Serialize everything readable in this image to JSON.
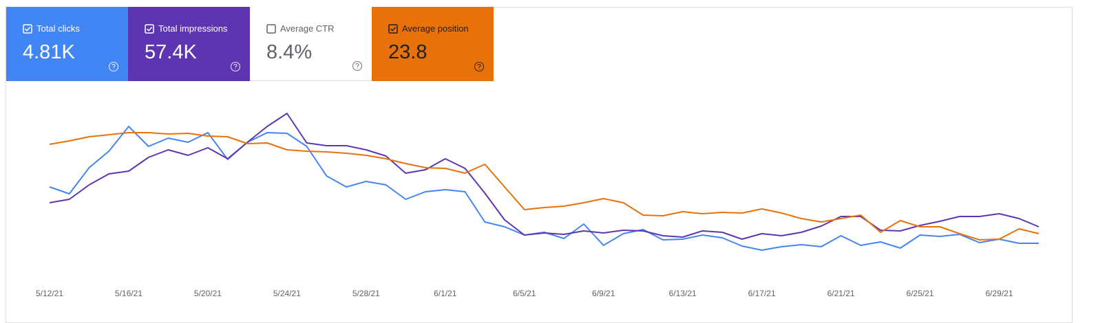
{
  "cards": [
    {
      "label": "Total clicks",
      "value": "4.81K",
      "checked": true,
      "color": "#4285f4"
    },
    {
      "label": "Total impressions",
      "value": "57.4K",
      "checked": true,
      "color": "#5e35b1"
    },
    {
      "label": "Average CTR",
      "value": "8.4%",
      "checked": false,
      "color": "#ffffff"
    },
    {
      "label": "Average position",
      "value": "23.8",
      "checked": true,
      "color": "#e8710a"
    }
  ],
  "chart_data": {
    "type": "line",
    "categories": [
      "5/12/21",
      null,
      null,
      null,
      "5/16/21",
      null,
      null,
      null,
      "5/20/21",
      null,
      null,
      null,
      "5/24/21",
      null,
      null,
      null,
      "5/28/21",
      null,
      null,
      null,
      "6/1/21",
      null,
      null,
      null,
      "6/5/21",
      null,
      null,
      null,
      "6/9/21",
      null,
      null,
      null,
      "6/13/21",
      null,
      null,
      null,
      "6/17/21",
      null,
      null,
      null,
      "6/21/21",
      null,
      null,
      null,
      "6/25/21",
      null,
      null,
      null,
      "6/29/21",
      null,
      null
    ],
    "ylim": [
      0,
      300
    ],
    "series": [
      {
        "color": "#4285f4",
        "values": [
          148,
          138,
          176,
          200,
          236,
          207,
          219,
          213,
          227,
          188,
          213,
          227,
          226,
          207,
          164,
          148,
          156,
          151,
          130,
          141,
          144,
          141,
          97,
          90,
          78,
          82,
          73,
          94,
          63,
          80,
          86,
          71,
          72,
          78,
          74,
          62,
          56,
          61,
          64,
          61,
          77,
          63,
          68,
          59,
          78,
          76,
          79,
          67,
          72,
          66,
          66
        ]
      },
      {
        "color": "#5e35b1",
        "values": [
          125,
          130,
          151,
          167,
          171,
          191,
          202,
          194,
          205,
          189,
          213,
          236,
          255,
          212,
          208,
          208,
          202,
          193,
          168,
          173,
          189,
          175,
          139,
          100,
          78,
          81,
          79,
          84,
          81,
          85,
          84,
          77,
          75,
          84,
          82,
          72,
          80,
          77,
          82,
          91,
          105,
          105,
          85,
          84,
          92,
          98,
          105,
          105,
          109,
          102,
          90
        ]
      },
      {
        "color": "#e8710a",
        "values": [
          210,
          215,
          221,
          224,
          227,
          227,
          225,
          226,
          222,
          221,
          211,
          212,
          202,
          200,
          199,
          197,
          194,
          189,
          182,
          176,
          175,
          168,
          181,
          148,
          115,
          118,
          120,
          125,
          131,
          125,
          107,
          106,
          112,
          109,
          111,
          110,
          116,
          110,
          102,
          97,
          102,
          107,
          82,
          99,
          90,
          90,
          80,
          71,
          72,
          87,
          80
        ]
      }
    ]
  }
}
